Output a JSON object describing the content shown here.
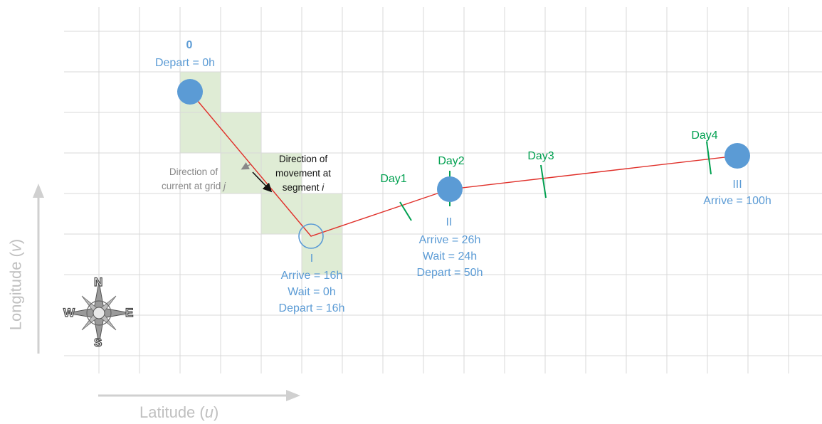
{
  "axes": {
    "x_label_text": "Latitude (",
    "x_label_var": "u",
    "x_label_close": ")",
    "y_label_text": "Longitude (",
    "y_label_var": "v",
    "y_label_close": ")"
  },
  "ports": [
    {
      "id": "0",
      "lines": [
        "Depart = 0h"
      ]
    },
    {
      "id": "I",
      "lines": [
        "Arrive = 16h",
        "Wait = 0h",
        "Depart = 16h"
      ]
    },
    {
      "id": "II",
      "lines": [
        "Arrive = 26h",
        "Wait = 24h",
        "Depart = 50h"
      ]
    },
    {
      "id": "III",
      "lines": [
        "Arrive = 100h"
      ]
    }
  ],
  "day_markers": [
    "Day1",
    "Day2",
    "Day3",
    "Day4"
  ],
  "annotations": {
    "movement": [
      "Direction of",
      "movement at",
      "segment "
    ],
    "movement_var": "i",
    "current": [
      "Direction of",
      "current at grid "
    ],
    "current_var": "j"
  },
  "compass": {
    "n": "N",
    "s": "S",
    "e": "E",
    "w": "W"
  },
  "colors": {
    "route": "#e0302a",
    "port": "#5b9bd5",
    "day_marker": "#00a050",
    "grid": "#d9d9d9",
    "highlight_cells": "#dfecd5",
    "axis_arrow": "#d0d0d0"
  }
}
